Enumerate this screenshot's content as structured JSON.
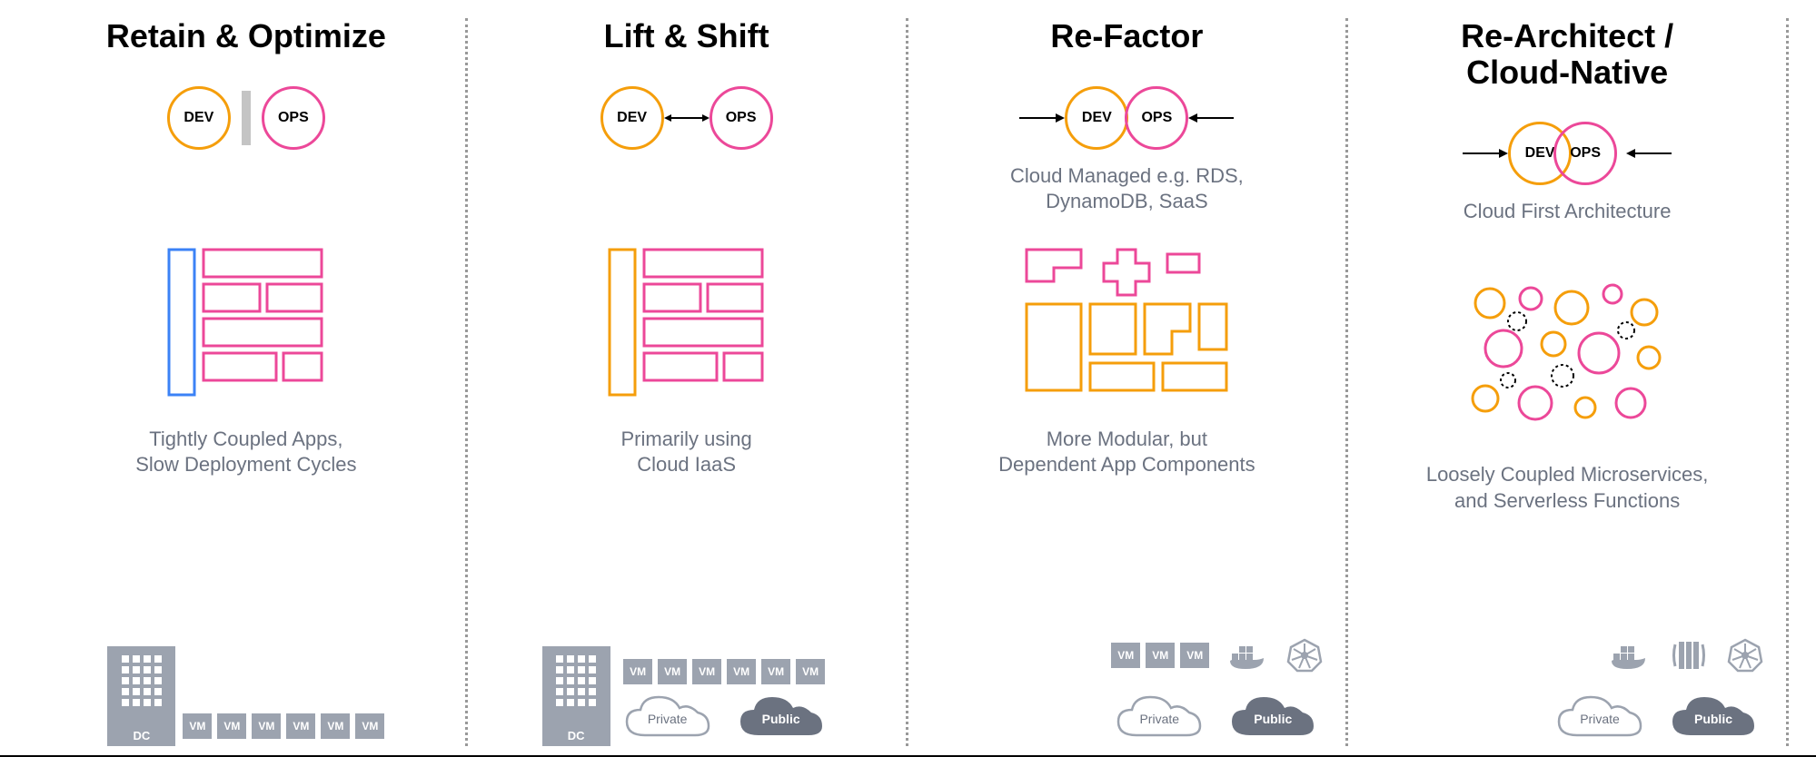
{
  "colors": {
    "dev_border": "#f59e0b",
    "ops_border": "#ec4899",
    "blue": "#3b82f6",
    "pink": "#ec4899",
    "orange": "#f59e0b",
    "gray": "#9ca3af",
    "gray_dark": "#6b7280",
    "text_muted": "#6b7280",
    "background": "#ffffff",
    "divider_dotted": "#999999"
  },
  "typography": {
    "title_fontsize": 36,
    "title_fontweight": 700,
    "subtitle_fontsize": 22,
    "desc_fontsize": 22,
    "vm_fontsize": 12,
    "cloud_label_fontsize": 14
  },
  "columns": [
    {
      "title": "Retain & Optimize",
      "devops_style": "separated_bar",
      "dev_label": "DEV",
      "ops_label": "OPS",
      "subtitle": "",
      "desc": "Tightly Coupled Apps,\nSlow Deployment Cycles",
      "infra": {
        "building": true,
        "dc_label": "DC",
        "vm_count": 6,
        "vm_label": "VM",
        "clouds": []
      }
    },
    {
      "title": "Lift & Shift",
      "devops_style": "bidirectional_arrow",
      "dev_label": "DEV",
      "ops_label": "OPS",
      "subtitle": "",
      "desc": "Primarily using\nCloud IaaS",
      "infra": {
        "building": true,
        "dc_label": "DC",
        "vm_count": 6,
        "vm_label": "VM",
        "clouds": [
          "Private",
          "Public"
        ]
      }
    },
    {
      "title": "Re-Factor",
      "devops_style": "arrows_inward_touching",
      "dev_label": "DEV",
      "ops_label": "OPS",
      "subtitle": "Cloud Managed e.g. RDS,\nDynamoDB, SaaS",
      "desc": "More Modular, but\nDependent App Components",
      "infra": {
        "building": false,
        "vm_count": 3,
        "vm_label": "VM",
        "icons": [
          "docker",
          "kubernetes"
        ],
        "clouds": [
          "Private",
          "Public"
        ]
      }
    },
    {
      "title": "Re-Architect /\nCloud-Native",
      "devops_style": "arrows_inward_overlap",
      "dev_label": "DEV",
      "ops_label": "OPS",
      "subtitle": "Cloud First Architecture",
      "desc": "Loosely Coupled Microservices,\nand Serverless Functions",
      "infra": {
        "building": false,
        "vm_count": 0,
        "icons": [
          "docker",
          "aws",
          "kubernetes"
        ],
        "clouds": [
          "Private",
          "Public"
        ]
      }
    }
  ]
}
